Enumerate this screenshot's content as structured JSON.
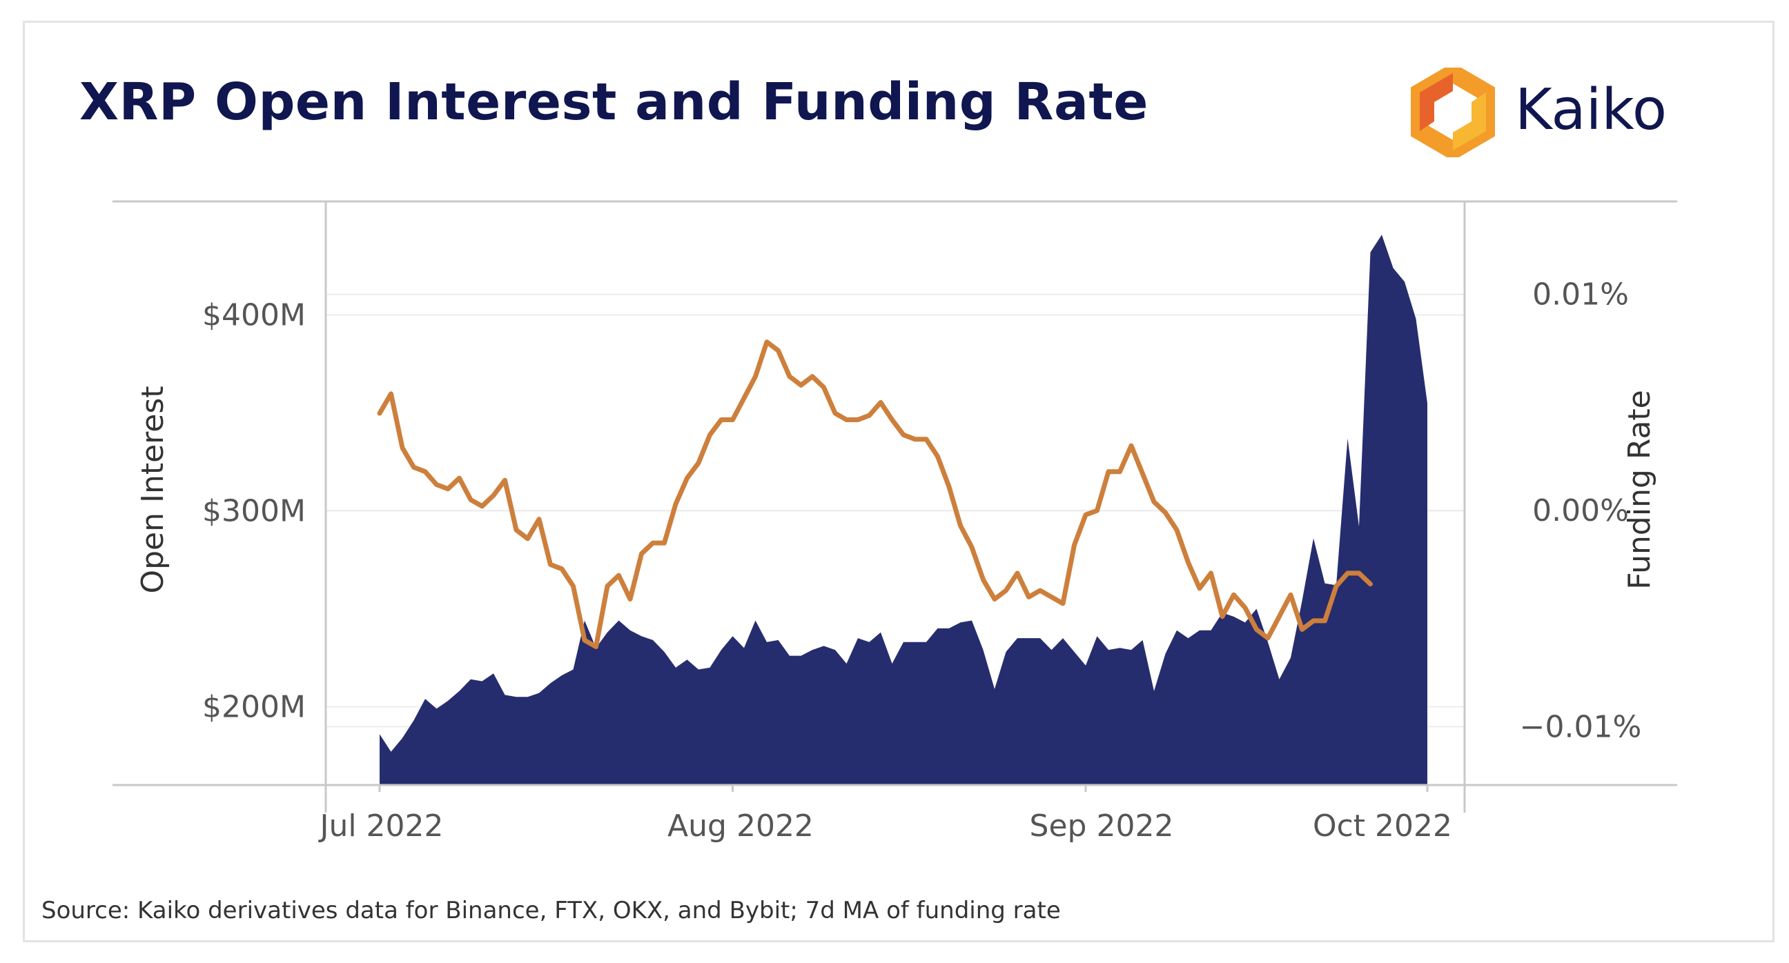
{
  "title": "XRP Open Interest and Funding Rate",
  "logo": {
    "text": "Kaiko",
    "icon": "kaiko-hexagon-logo-icon"
  },
  "source": "Source: Kaiko derivatives data for Binance, FTX, OKX, and Bybit; 7d MA of funding rate",
  "colors": {
    "open_interest": "#262d6e",
    "funding_rate": "#cd7f3c",
    "title": "#10164f",
    "logo_orange": "#f39c29",
    "logo_red": "#e8622b"
  },
  "chart_data": {
    "type": "area",
    "x_ticks": [
      "Jul 2022",
      "Aug 2022",
      "Sep 2022",
      "Oct 2022"
    ],
    "x_start": "2022-07-01",
    "x_end": "2022-09-30",
    "y_left": {
      "label": "Open Interest",
      "ticks": [
        "$200M",
        "$300M",
        "$400M"
      ],
      "tick_values": [
        200,
        300,
        400
      ],
      "range": [
        160,
        458
      ]
    },
    "y_right": {
      "label": "Funding Rate",
      "ticks": [
        "0.01%",
        "0.00%",
        "−0.01%"
      ],
      "tick_values": [
        0.01,
        0,
        -0.01
      ],
      "range": [
        -0.0127,
        0.0143
      ]
    },
    "grid": "horizontal",
    "series": [
      {
        "name": "Open Interest",
        "type": "area",
        "axis": "left",
        "unit": "$M",
        "values": [
          [
            0,
            186
          ],
          [
            1,
            177
          ],
          [
            2,
            184
          ],
          [
            3,
            193
          ],
          [
            4,
            204
          ],
          [
            5,
            199
          ],
          [
            6,
            203
          ],
          [
            7,
            208
          ],
          [
            8,
            214
          ],
          [
            9,
            213
          ],
          [
            10,
            217
          ],
          [
            11,
            206
          ],
          [
            12,
            205
          ],
          [
            13,
            205
          ],
          [
            14,
            207
          ],
          [
            15,
            212
          ],
          [
            16,
            216
          ],
          [
            17,
            219
          ],
          [
            18,
            244
          ],
          [
            19,
            230
          ],
          [
            20,
            238
          ],
          [
            21,
            244
          ],
          [
            22,
            239
          ],
          [
            23,
            236
          ],
          [
            24,
            234
          ],
          [
            25,
            228
          ],
          [
            26,
            220
          ],
          [
            27,
            224
          ],
          [
            28,
            219
          ],
          [
            29,
            220
          ],
          [
            30,
            229
          ],
          [
            31,
            236
          ],
          [
            32,
            230
          ],
          [
            33,
            244
          ],
          [
            34,
            233
          ],
          [
            35,
            234
          ],
          [
            36,
            226
          ],
          [
            37,
            226
          ],
          [
            38,
            229
          ],
          [
            39,
            231
          ],
          [
            40,
            229
          ],
          [
            41,
            222
          ],
          [
            42,
            235
          ],
          [
            43,
            233
          ],
          [
            44,
            238
          ],
          [
            45,
            222
          ],
          [
            46,
            233
          ],
          [
            47,
            233
          ],
          [
            48,
            233
          ],
          [
            49,
            240
          ],
          [
            50,
            240
          ],
          [
            51,
            243
          ],
          [
            52,
            244
          ],
          [
            53,
            229
          ],
          [
            54,
            209
          ],
          [
            55,
            228
          ],
          [
            56,
            235
          ],
          [
            57,
            235
          ],
          [
            58,
            235
          ],
          [
            59,
            229
          ],
          [
            60,
            235
          ],
          [
            61,
            228
          ],
          [
            62,
            221
          ],
          [
            63,
            236
          ],
          [
            64,
            229
          ],
          [
            65,
            230
          ],
          [
            66,
            229
          ],
          [
            67,
            234
          ],
          [
            68,
            208
          ],
          [
            69,
            227
          ],
          [
            70,
            239
          ],
          [
            71,
            235
          ],
          [
            72,
            239
          ],
          [
            73,
            239
          ],
          [
            74,
            248
          ],
          [
            75,
            246
          ],
          [
            76,
            243
          ],
          [
            77,
            250
          ],
          [
            78,
            233
          ],
          [
            79,
            214
          ],
          [
            80,
            225
          ],
          [
            81,
            254
          ],
          [
            82,
            286
          ],
          [
            83,
            263
          ],
          [
            84,
            262
          ],
          [
            85,
            337
          ],
          [
            86,
            292
          ],
          [
            87,
            432
          ],
          [
            88,
            441
          ],
          [
            89,
            424
          ],
          [
            90,
            417
          ],
          [
            91,
            398
          ],
          [
            92,
            355
          ]
        ]
      },
      {
        "name": "Funding Rate",
        "type": "line",
        "axis": "right",
        "unit": "%",
        "values": [
          [
            0,
            0.0045
          ],
          [
            1,
            0.0054
          ],
          [
            2,
            0.0029
          ],
          [
            3,
            0.002
          ],
          [
            4,
            0.0018
          ],
          [
            5,
            0.0012
          ],
          [
            6,
            0.001
          ],
          [
            7,
            0.0015
          ],
          [
            8,
            0.0005
          ],
          [
            9,
            0.0002
          ],
          [
            10,
            0.0007
          ],
          [
            11,
            0.0014
          ],
          [
            12,
            -0.0009
          ],
          [
            13,
            -0.0013
          ],
          [
            14,
            -0.0004
          ],
          [
            15,
            -0.0025
          ],
          [
            16,
            -0.0027
          ],
          [
            17,
            -0.0035
          ],
          [
            18,
            -0.006
          ],
          [
            19,
            -0.0063
          ],
          [
            20,
            -0.0035
          ],
          [
            21,
            -0.003
          ],
          [
            22,
            -0.0041
          ],
          [
            23,
            -0.002
          ],
          [
            24,
            -0.0015
          ],
          [
            25,
            -0.0015
          ],
          [
            26,
            0.0003
          ],
          [
            27,
            0.0015
          ],
          [
            28,
            0.0022
          ],
          [
            29,
            0.0035
          ],
          [
            30,
            0.0042
          ],
          [
            31,
            0.0042
          ],
          [
            32,
            0.0052
          ],
          [
            33,
            0.0062
          ],
          [
            34,
            0.0078
          ],
          [
            35,
            0.0074
          ],
          [
            36,
            0.0062
          ],
          [
            37,
            0.0058
          ],
          [
            38,
            0.0062
          ],
          [
            39,
            0.0057
          ],
          [
            40,
            0.0045
          ],
          [
            41,
            0.0042
          ],
          [
            42,
            0.0042
          ],
          [
            43,
            0.0044
          ],
          [
            44,
            0.005
          ],
          [
            45,
            0.0042
          ],
          [
            46,
            0.0035
          ],
          [
            47,
            0.0033
          ],
          [
            48,
            0.0033
          ],
          [
            49,
            0.0025
          ],
          [
            50,
            0.0011
          ],
          [
            51,
            -0.0007
          ],
          [
            52,
            -0.0017
          ],
          [
            53,
            -0.0032
          ],
          [
            54,
            -0.0041
          ],
          [
            55,
            -0.0037
          ],
          [
            56,
            -0.0029
          ],
          [
            57,
            -0.004
          ],
          [
            58,
            -0.0037
          ],
          [
            59,
            -0.004
          ],
          [
            60,
            -0.0043
          ],
          [
            61,
            -0.0016
          ],
          [
            62,
            -0.0002
          ],
          [
            63,
            0.0
          ],
          [
            64,
            0.0018
          ],
          [
            65,
            0.0018
          ],
          [
            66,
            0.003
          ],
          [
            67,
            0.0017
          ],
          [
            68,
            0.0004
          ],
          [
            69,
            -0.0001
          ],
          [
            70,
            -0.0009
          ],
          [
            71,
            -0.0024
          ],
          [
            72,
            -0.0036
          ],
          [
            73,
            -0.0029
          ],
          [
            74,
            -0.0049
          ],
          [
            75,
            -0.0039
          ],
          [
            76,
            -0.0045
          ],
          [
            77,
            -0.0055
          ],
          [
            78,
            -0.0059
          ],
          [
            79,
            -0.0049
          ],
          [
            80,
            -0.0039
          ],
          [
            81,
            -0.0055
          ],
          [
            82,
            -0.0051
          ],
          [
            83,
            -0.0051
          ],
          [
            84,
            -0.0035
          ],
          [
            85,
            -0.0029
          ],
          [
            86,
            -0.0029
          ],
          [
            87,
            -0.0034
          ]
        ]
      }
    ]
  }
}
